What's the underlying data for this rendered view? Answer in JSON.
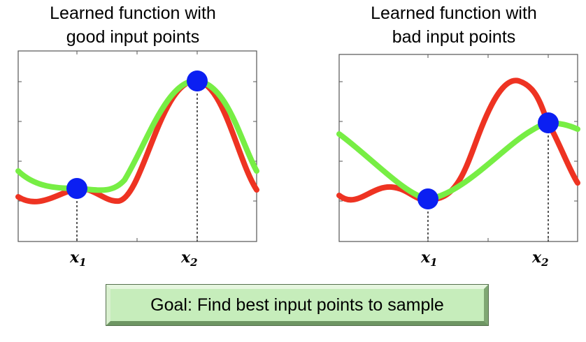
{
  "panels": [
    {
      "id": "good",
      "title_lines": [
        "Learned function with",
        "good input points"
      ],
      "x_labels": [
        {
          "base": "x",
          "sub": "1"
        },
        {
          "base": "x",
          "sub": "2"
        }
      ]
    },
    {
      "id": "bad",
      "title_lines": [
        "Learned function with",
        "bad input points"
      ],
      "x_labels": [
        {
          "base": "x",
          "sub": "1"
        },
        {
          "base": "x",
          "sub": "2"
        }
      ]
    }
  ],
  "goal_text": "Goal: Find best input points to sample",
  "colors": {
    "true_function": "#ee3322",
    "learned_function": "#77ee44",
    "sample_point": "#0b1ff2",
    "axes": "#555555"
  }
}
